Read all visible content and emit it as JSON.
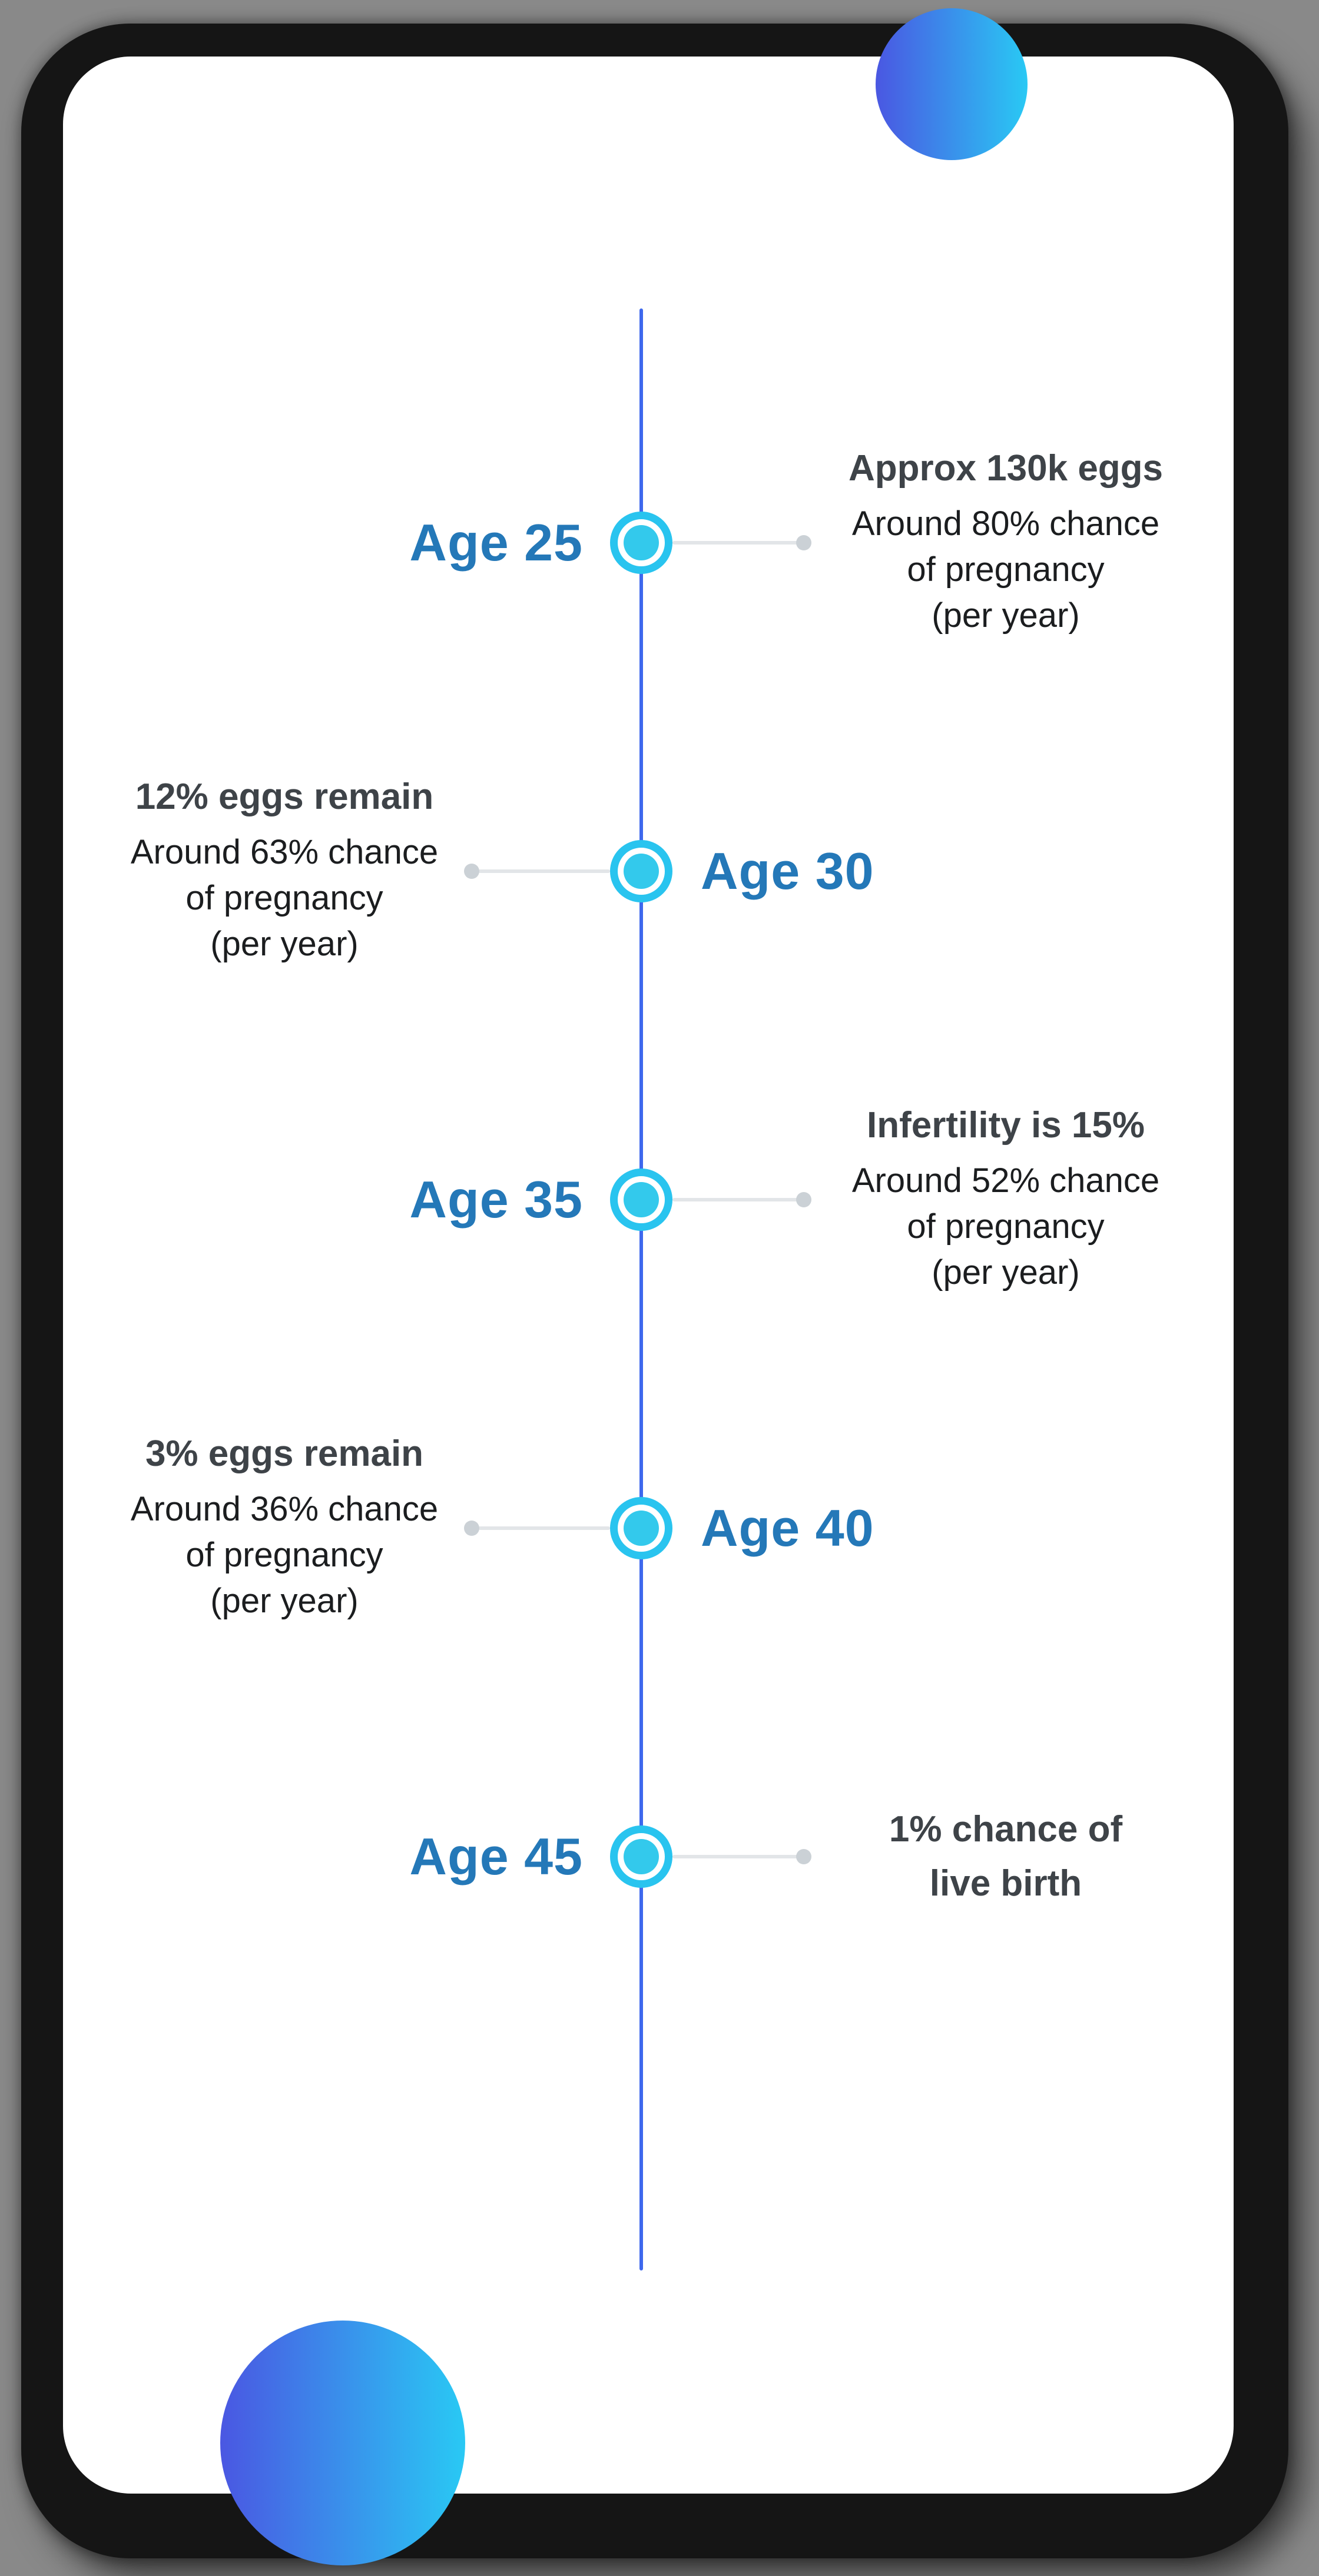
{
  "colors": {
    "page-bg": "#898989",
    "frame-color": "#151515",
    "screen-color": "#ffffff",
    "line-color": "#3e68ed",
    "marker-ring-color": "#29c4ef",
    "marker-dot-color": "#33c9ec",
    "connector-color": "#e2e5e8",
    "connector-dot-color": "#cbd1d6",
    "age-color": "#2478b8",
    "heading-color": "#3e4348",
    "body-color": "#1b1d1f",
    "gradient-start": "#4a57e2",
    "gradient-end": "#29c9f4"
  },
  "timeline": {
    "items": [
      {
        "age": "Age 25",
        "detail_side": "right",
        "heading_lines": [
          "Approx 130k eggs"
        ],
        "body_lines": [
          "Around 80% chance",
          "of pregnancy",
          "(per year)"
        ]
      },
      {
        "age": "Age 30",
        "detail_side": "left",
        "heading_lines": [
          "12% eggs remain"
        ],
        "body_lines": [
          "Around 63% chance",
          "of pregnancy",
          "(per year)"
        ]
      },
      {
        "age": "Age 35",
        "detail_side": "right",
        "heading_lines": [
          "Infertility is 15%"
        ],
        "body_lines": [
          "Around 52% chance",
          "of pregnancy",
          "(per year)"
        ]
      },
      {
        "age": "Age 40",
        "detail_side": "left",
        "heading_lines": [
          "3% eggs remain"
        ],
        "body_lines": [
          "Around 36% chance",
          "of pregnancy",
          "(per year)"
        ]
      },
      {
        "age": "Age 45",
        "detail_side": "right",
        "heading_lines": [
          "1% chance of",
          "live birth"
        ],
        "body_lines": []
      }
    ]
  }
}
